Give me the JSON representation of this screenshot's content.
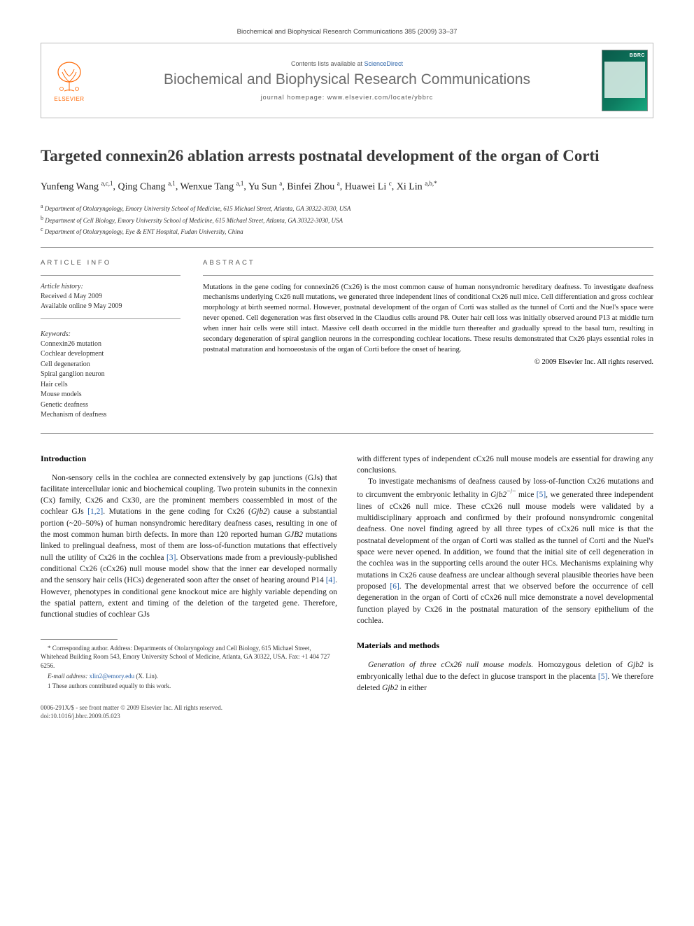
{
  "header": {
    "citation_line": "Biochemical and Biophysical Research Communications 385 (2009) 33–37",
    "contents_prefix": "Contents lists available at ",
    "contents_link": "ScienceDirect",
    "journal_name": "Biochemical and Biophysical Research Communications",
    "homepage_prefix": "journal homepage: ",
    "homepage_url": "www.elsevier.com/locate/ybbrc",
    "publisher": "ELSEVIER",
    "cover_code": "BBRC"
  },
  "colors": {
    "elsevier_orange": "#ff6600",
    "link_blue": "#2861a8",
    "journal_gray": "#6b6b6b",
    "cover_gradient_start": "#0a5a4a",
    "cover_gradient_end": "#15a87e"
  },
  "title": "Targeted connexin26 ablation arrests postnatal development of the organ of Corti",
  "authors_html": "Yunfeng Wang <sup>a,c,1</sup>, Qing Chang <sup>a,1</sup>, Wenxue Tang <sup>a,1</sup>, Yu Sun <sup>a</sup>, Binfei Zhou <sup>a</sup>, Huawei Li <sup>c</sup>, Xi Lin <sup>a,b,*</sup>",
  "affiliations": [
    {
      "sup": "a",
      "text": "Department of Otolaryngology, Emory University School of Medicine, 615 Michael Street, Atlanta, GA 30322-3030, USA"
    },
    {
      "sup": "b",
      "text": "Department of Cell Biology, Emory University School of Medicine, 615 Michael Street, Atlanta, GA 30322-3030, USA"
    },
    {
      "sup": "c",
      "text": "Department of Otolaryngology, Eye & ENT Hospital, Fudan University, China"
    }
  ],
  "article_info_label": "ARTICLE INFO",
  "abstract_label": "ABSTRACT",
  "history": {
    "label": "Article history:",
    "received": "Received 4 May 2009",
    "online": "Available online 9 May 2009"
  },
  "keywords": {
    "label": "Keywords:",
    "items": [
      "Connexin26 mutation",
      "Cochlear development",
      "Cell degeneration",
      "Spiral ganglion neuron",
      "Hair cells",
      "Mouse models",
      "Genetic deafness",
      "Mechanism of deafness"
    ]
  },
  "abstract": "Mutations in the gene coding for connexin26 (Cx26) is the most common cause of human nonsyndromic hereditary deafness. To investigate deafness mechanisms underlying Cx26 null mutations, we generated three independent lines of conditional Cx26 null mice. Cell differentiation and gross cochlear morphology at birth seemed normal. However, postnatal development of the organ of Corti was stalled as the tunnel of Corti and the Nuel's space were never opened. Cell degeneration was first observed in the Claudius cells around P8. Outer hair cell loss was initially observed around P13 at middle turn when inner hair cells were still intact. Massive cell death occurred in the middle turn thereafter and gradually spread to the basal turn, resulting in secondary degeneration of spiral ganglion neurons in the corresponding cochlear locations. These results demonstrated that Cx26 plays essential roles in postnatal maturation and homoeostasis of the organ of Corti before the onset of hearing.",
  "copyright": "© 2009 Elsevier Inc. All rights reserved.",
  "body": {
    "intro_heading": "Introduction",
    "left_paras": [
      "Non-sensory cells in the cochlea are connected extensively by gap junctions (GJs) that facilitate intercellular ionic and biochemical coupling. Two protein subunits in the connexin (Cx) family, Cx26 and Cx30, are the prominent members coassembled in most of the cochlear GJs [1,2]. Mutations in the gene coding for Cx26 (Gjb2) cause a substantial portion (~20–50%) of human nonsyndromic hereditary deafness cases, resulting in one of the most common human birth defects. In more than 120 reported human GJB2 mutations linked to prelingual deafness, most of them are loss-of-function mutations that effectively null the utility of Cx26 in the cochlea [3]. Observations made from a previously-published conditional Cx26 (cCx26) null mouse model show that the inner ear developed normally and the sensory hair cells (HCs) degenerated soon after the onset of hearing around P14 [4]. However, phenotypes in conditional gene knockout mice are highly variable depending on the spatial pattern, extent and timing of the deletion of the targeted gene. Therefore, functional studies of cochlear GJs"
    ],
    "right_paras": [
      "with different types of independent cCx26 null mouse models are essential for drawing any conclusions.",
      "To investigate mechanisms of deafness caused by loss-of-function Cx26 mutations and to circumvent the embryonic lethality in Gjb2−/− mice [5], we generated three independent lines of cCx26 null mice. These cCx26 null mouse models were validated by a multidisciplinary approach and confirmed by their profound nonsyndromic congenital deafness. One novel finding agreed by all three types of cCx26 null mice is that the postnatal development of the organ of Corti was stalled as the tunnel of Corti and the Nuel's space were never opened. In addition, we found that the initial site of cell degeneration in the cochlea was in the supporting cells around the outer HCs. Mechanisms explaining why mutations in Cx26 cause deafness are unclear although several plausible theories have been proposed [6]. The developmental arrest that we observed before the occurrence of cell degeneration in the organ of Corti of cCx26 null mice demonstrate a novel developmental function played by Cx26 in the postnatal maturation of the sensory epithelium of the cochlea."
    ],
    "mm_heading": "Materials and methods",
    "mm_para": "Generation of three cCx26 null mouse models. Homozygous deletion of Gjb2 is embryonically lethal due to the defect in glucose transport in the placenta [5]. We therefore deleted Gjb2 in either"
  },
  "footnotes": {
    "corr": "* Corresponding author. Address: Departments of Otolaryngology and Cell Biology, 615 Michael Street, Whitehead Building Room 543, Emory University School of Medicine, Atlanta, GA 30322, USA. Fax: +1 404 727 6256.",
    "email_label": "E-mail address:",
    "email": "xlin2@emory.edu",
    "email_person": "(X. Lin).",
    "equal": "1 These authors contributed equally to this work."
  },
  "footer": {
    "left1": "0006-291X/$ - see front matter © 2009 Elsevier Inc. All rights reserved.",
    "left2": "doi:10.1016/j.bbrc.2009.05.023"
  }
}
